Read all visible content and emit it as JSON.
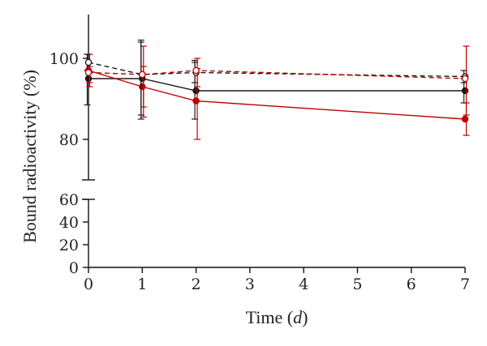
{
  "chart_data": {
    "type": "line",
    "xlabel": "Time",
    "xlabel_unit": "d",
    "ylabel": "Bound radioactivity (%)",
    "xlim": [
      0,
      7
    ],
    "x_ticks": [
      "0",
      "1",
      "2",
      "3",
      "4",
      "5",
      "6",
      "7"
    ],
    "ylim_upper": [
      70,
      110
    ],
    "ylim_lower": [
      0,
      60
    ],
    "y_ticks_upper": [
      "100",
      "80"
    ],
    "y_ticks_lower": [
      "60",
      "40",
      "20",
      "0"
    ],
    "broken_axis": true,
    "grid": false,
    "series": [
      {
        "color": "#1a1a1a",
        "line": "solid",
        "marker": "filled-circle",
        "x": [
          0,
          1,
          2,
          7
        ],
        "y": [
          95,
          95,
          92,
          92
        ],
        "err_low": [
          88.5,
          85,
          85,
          89
        ],
        "err_high": [
          101,
          104.5,
          99.5,
          95
        ]
      },
      {
        "color": "#c00000",
        "line": "solid",
        "marker": "filled-circle",
        "x": [
          0,
          1,
          2,
          7
        ],
        "y": [
          97,
          93,
          89.5,
          85
        ],
        "err_low": [
          93,
          85.5,
          80,
          81
        ],
        "err_high": [
          101,
          103,
          97.5,
          89
        ]
      },
      {
        "color": "#1a1a1a",
        "line": "dashed",
        "marker": "open-circle",
        "x": [
          0,
          1,
          2,
          7
        ],
        "y": [
          99,
          96,
          96.5,
          95.5
        ],
        "err_low": [
          97,
          86,
          94,
          94
        ],
        "err_high": [
          101,
          104,
          99,
          97
        ]
      },
      {
        "color": "#c00000",
        "line": "dashed",
        "marker": "open-circle",
        "x": [
          0,
          1,
          2,
          7
        ],
        "y": [
          96.5,
          96,
          97,
          95
        ],
        "err_low": [
          94,
          88,
          93,
          86
        ],
        "err_high": [
          98,
          98,
          100,
          103
        ]
      }
    ]
  }
}
